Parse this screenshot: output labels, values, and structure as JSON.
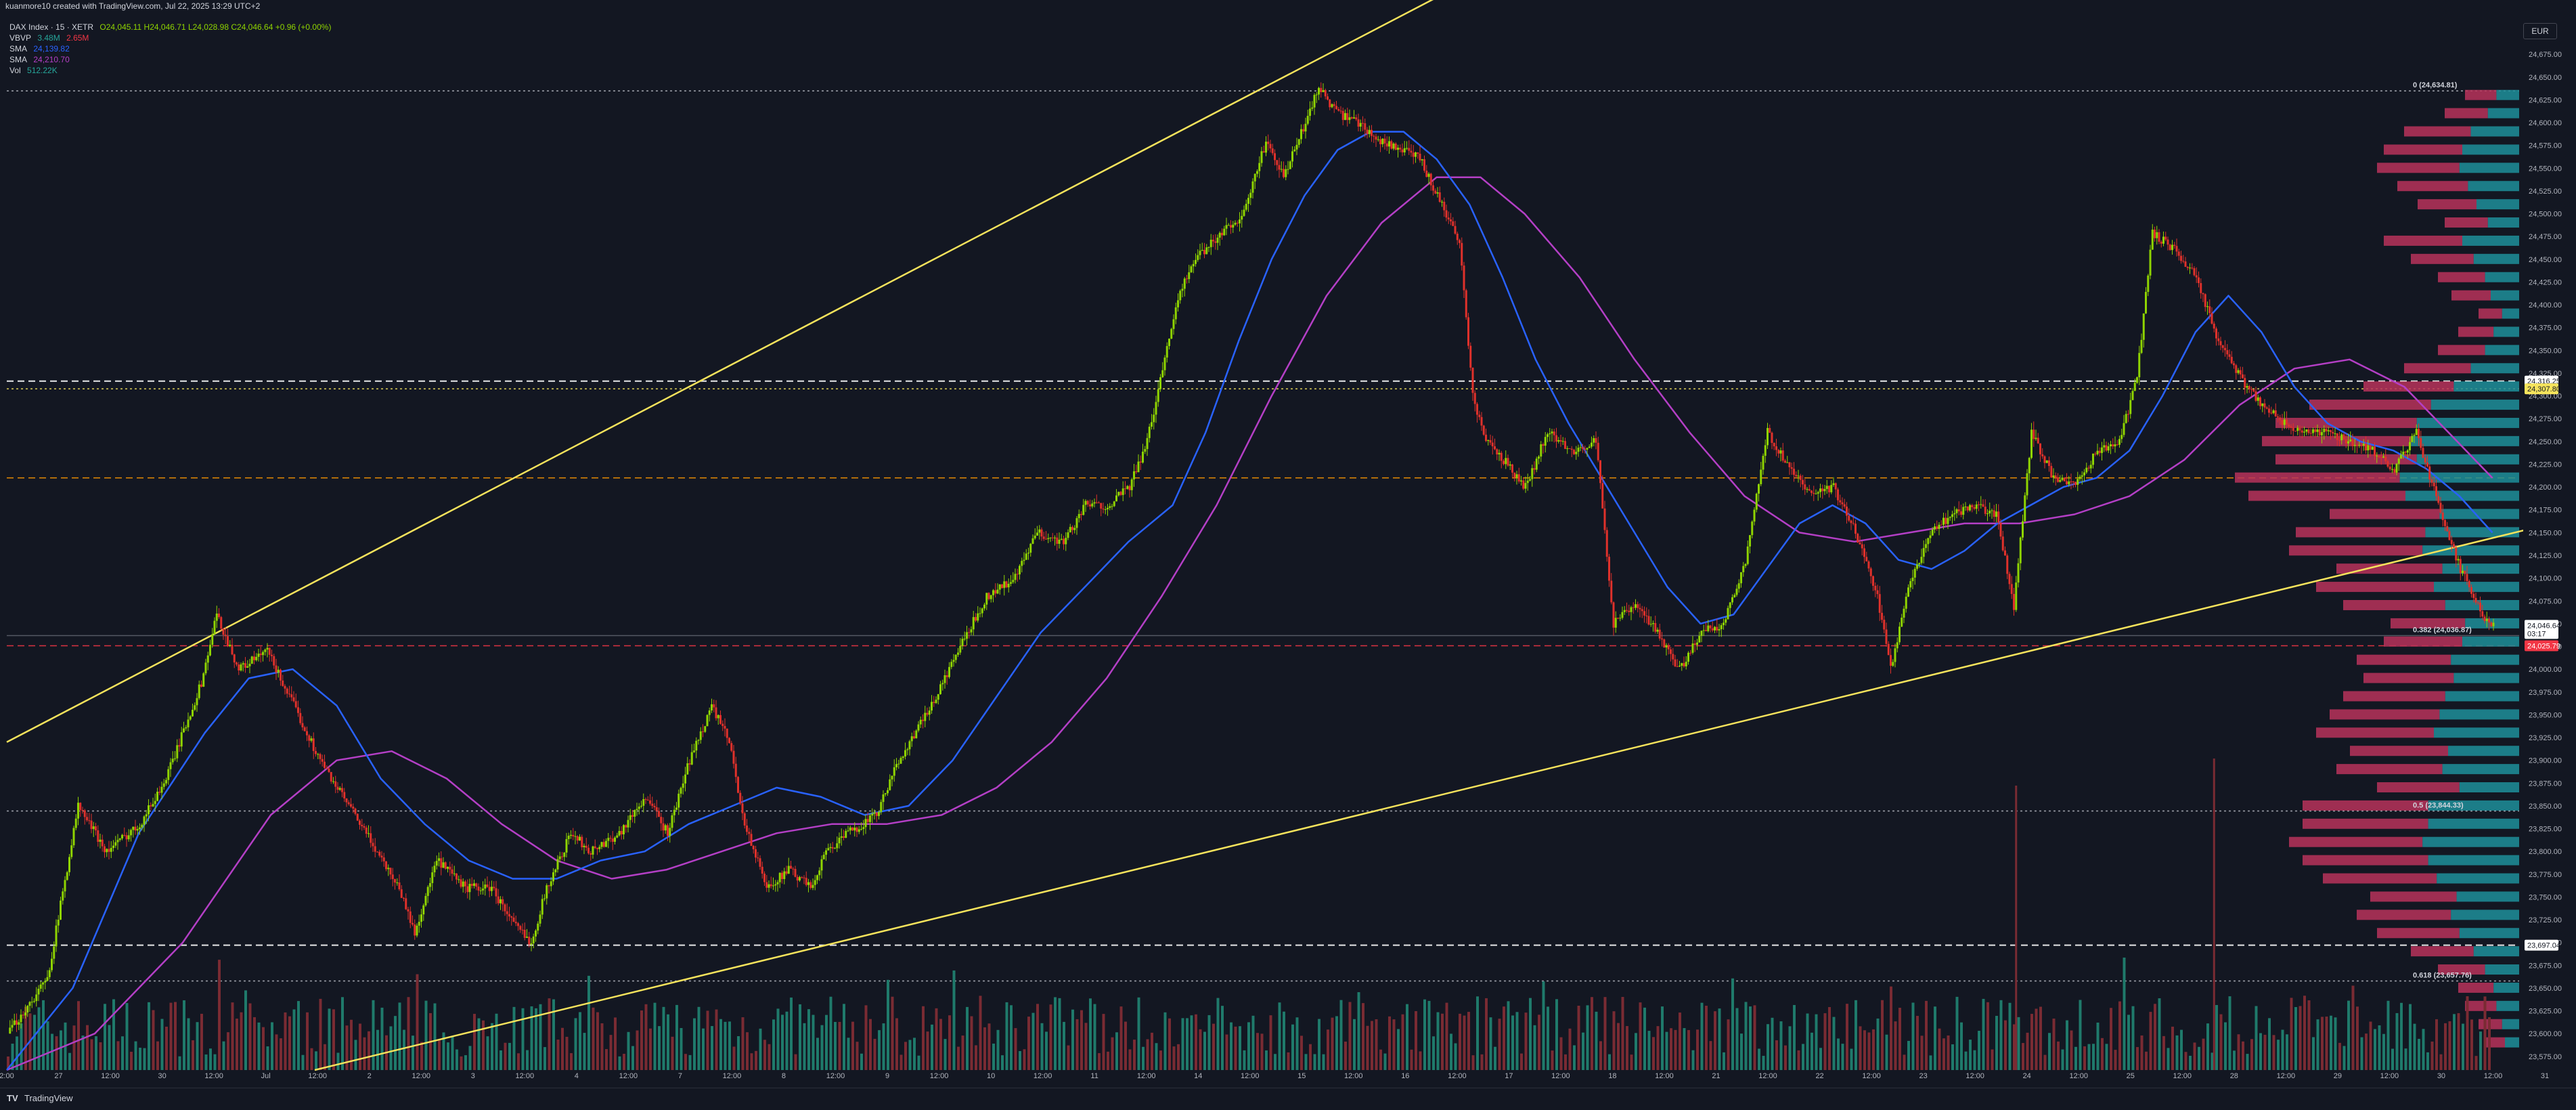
{
  "header": {
    "caption": "kuanmore10 created with TradingView.com, Jul 22, 2025 13:29 UTC+2"
  },
  "legend": {
    "symbol_line": "DAX Index · 15 · XETR",
    "ohlc": "O24,045.11 H24,046.71 L24,028.98 C24,046.64 +0.96 (+0.00%)",
    "rows": [
      {
        "key": "VBVP",
        "values": [
          "3.48M",
          "2.65M"
        ]
      },
      {
        "key": "SMA",
        "values": [
          "24,139.82"
        ]
      },
      {
        "key": "SMA",
        "values": [
          "24,210.70"
        ]
      },
      {
        "key": "Vol",
        "values": [
          "512.22K"
        ]
      }
    ]
  },
  "currency": "EUR",
  "footer": {
    "brand": "TradingView"
  },
  "colors": {
    "background": "#131722",
    "up": "#8fd400",
    "down": "#e0312b",
    "sma_fast": "#2962ff",
    "sma_slow": "#b43fc6",
    "trendline": "#f5e35c",
    "vol_up": "#1f7a6b",
    "vol_down": "#7a2b33",
    "vp_up": "#1f8f9a",
    "vp_down": "#b8325a",
    "level_orange": "#ff9800",
    "level_red": "#f23645"
  },
  "chart_data": {
    "type": "candlestick",
    "symbol": "DAX Index",
    "timeframe": "15",
    "exchange": "XETR",
    "ylim": [
      23560,
      24690
    ],
    "y_ticks": [
      "24,675.00",
      "24,650.00",
      "24,625.00",
      "24,600.00",
      "24,575.00",
      "24,550.00",
      "24,525.00",
      "24,500.00",
      "24,475.00",
      "24,450.00",
      "24,425.00",
      "24,400.00",
      "24,375.00",
      "24,350.00",
      "24,325.00",
      "24,300.00",
      "24,275.00",
      "24,250.00",
      "24,225.00",
      "24,200.00",
      "24,175.00",
      "24,150.00",
      "24,125.00",
      "24,100.00",
      "24,075.00",
      "24,050.00",
      "24,025.00",
      "24,000.00",
      "23,975.00",
      "23,950.00",
      "23,925.00",
      "23,900.00",
      "23,875.00",
      "23,850.00",
      "23,825.00",
      "23,800.00",
      "23,775.00",
      "23,750.00",
      "23,725.00",
      "23,700.00",
      "23,675.00",
      "23,650.00",
      "23,625.00",
      "23,600.00",
      "23,575.00"
    ],
    "x_ticks": [
      "2:00",
      "27",
      "12:00",
      "30",
      "12:00",
      "Jul",
      "12:00",
      "2",
      "12:00",
      "3",
      "12:00",
      "4",
      "12:00",
      "7",
      "12:00",
      "8",
      "12:00",
      "9",
      "12:00",
      "10",
      "12:00",
      "11",
      "12:00",
      "14",
      "12:00",
      "15",
      "12:00",
      "16",
      "12:00",
      "17",
      "12:00",
      "18",
      "12:00",
      "21",
      "12:00",
      "22",
      "12:00",
      "23",
      "12:00",
      "24",
      "12:00",
      "25",
      "12:00",
      "28",
      "12:00",
      "29",
      "12:00",
      "30",
      "12:00",
      "31"
    ],
    "close_path": [
      [
        0,
        23600
      ],
      [
        18,
        23660
      ],
      [
        32,
        23850
      ],
      [
        45,
        23800
      ],
      [
        60,
        23830
      ],
      [
        72,
        23880
      ],
      [
        88,
        23985
      ],
      [
        95,
        24060
      ],
      [
        105,
        24000
      ],
      [
        118,
        24020
      ],
      [
        130,
        23960
      ],
      [
        142,
        23900
      ],
      [
        155,
        23850
      ],
      [
        168,
        23800
      ],
      [
        178,
        23760
      ],
      [
        185,
        23710
      ],
      [
        195,
        23790
      ],
      [
        208,
        23760
      ],
      [
        220,
        23760
      ],
      [
        230,
        23720
      ],
      [
        238,
        23700
      ],
      [
        245,
        23760
      ],
      [
        256,
        23820
      ],
      [
        265,
        23800
      ],
      [
        278,
        23820
      ],
      [
        290,
        23860
      ],
      [
        300,
        23820
      ],
      [
        310,
        23900
      ],
      [
        320,
        23960
      ],
      [
        328,
        23920
      ],
      [
        335,
        23830
      ],
      [
        345,
        23760
      ],
      [
        355,
        23780
      ],
      [
        365,
        23760
      ],
      [
        372,
        23800
      ],
      [
        382,
        23820
      ],
      [
        395,
        23840
      ],
      [
        405,
        23900
      ],
      [
        420,
        23960
      ],
      [
        432,
        24020
      ],
      [
        445,
        24080
      ],
      [
        458,
        24100
      ],
      [
        468,
        24150
      ],
      [
        480,
        24140
      ],
      [
        490,
        24180
      ],
      [
        500,
        24180
      ],
      [
        510,
        24200
      ],
      [
        518,
        24250
      ],
      [
        525,
        24330
      ],
      [
        532,
        24410
      ],
      [
        540,
        24450
      ],
      [
        552,
        24480
      ],
      [
        562,
        24500
      ],
      [
        572,
        24580
      ],
      [
        580,
        24540
      ],
      [
        590,
        24600
      ],
      [
        596,
        24640
      ],
      [
        604,
        24610
      ],
      [
        614,
        24600
      ],
      [
        624,
        24580
      ],
      [
        634,
        24570
      ],
      [
        642,
        24560
      ],
      [
        650,
        24520
      ],
      [
        660,
        24470
      ],
      [
        666,
        24300
      ],
      [
        672,
        24250
      ],
      [
        680,
        24230
      ],
      [
        690,
        24200
      ],
      [
        700,
        24260
      ],
      [
        712,
        24240
      ],
      [
        722,
        24250
      ],
      [
        730,
        24050
      ],
      [
        740,
        24070
      ],
      [
        750,
        24040
      ],
      [
        760,
        24000
      ],
      [
        770,
        24040
      ],
      [
        780,
        24050
      ],
      [
        790,
        24120
      ],
      [
        800,
        24260
      ],
      [
        810,
        24220
      ],
      [
        820,
        24190
      ],
      [
        830,
        24200
      ],
      [
        840,
        24150
      ],
      [
        850,
        24080
      ],
      [
        856,
        24000
      ],
      [
        864,
        24090
      ],
      [
        874,
        24150
      ],
      [
        884,
        24170
      ],
      [
        894,
        24180
      ],
      [
        904,
        24170
      ],
      [
        912,
        24070
      ],
      [
        920,
        24260
      ],
      [
        930,
        24210
      ],
      [
        940,
        24200
      ],
      [
        950,
        24240
      ],
      [
        960,
        24250
      ],
      [
        968,
        24320
      ],
      [
        975,
        24480
      ],
      [
        985,
        24460
      ],
      [
        995,
        24430
      ],
      [
        1005,
        24360
      ],
      [
        1015,
        24320
      ],
      [
        1025,
        24290
      ],
      [
        1035,
        24270
      ],
      [
        1045,
        24260
      ],
      [
        1055,
        24260
      ],
      [
        1065,
        24250
      ],
      [
        1075,
        24240
      ],
      [
        1085,
        24220
      ],
      [
        1095,
        24260
      ],
      [
        1105,
        24180
      ],
      [
        1115,
        24110
      ],
      [
        1125,
        24060
      ],
      [
        1130,
        24047
      ]
    ],
    "sma_fast": [
      [
        0,
        23560
      ],
      [
        30,
        23650
      ],
      [
        60,
        23820
      ],
      [
        90,
        23930
      ],
      [
        110,
        23990
      ],
      [
        130,
        24000
      ],
      [
        150,
        23960
      ],
      [
        170,
        23880
      ],
      [
        190,
        23830
      ],
      [
        210,
        23790
      ],
      [
        230,
        23770
      ],
      [
        250,
        23770
      ],
      [
        270,
        23790
      ],
      [
        290,
        23800
      ],
      [
        310,
        23830
      ],
      [
        330,
        23850
      ],
      [
        350,
        23870
      ],
      [
        370,
        23860
      ],
      [
        390,
        23840
      ],
      [
        410,
        23850
      ],
      [
        430,
        23900
      ],
      [
        450,
        23970
      ],
      [
        470,
        24040
      ],
      [
        490,
        24090
      ],
      [
        510,
        24140
      ],
      [
        530,
        24180
      ],
      [
        545,
        24260
      ],
      [
        560,
        24360
      ],
      [
        575,
        24450
      ],
      [
        590,
        24520
      ],
      [
        605,
        24570
      ],
      [
        620,
        24590
      ],
      [
        635,
        24590
      ],
      [
        650,
        24560
      ],
      [
        665,
        24510
      ],
      [
        680,
        24430
      ],
      [
        695,
        24340
      ],
      [
        710,
        24270
      ],
      [
        725,
        24210
      ],
      [
        740,
        24150
      ],
      [
        755,
        24090
      ],
      [
        770,
        24050
      ],
      [
        785,
        24060
      ],
      [
        800,
        24110
      ],
      [
        815,
        24160
      ],
      [
        830,
        24180
      ],
      [
        845,
        24160
      ],
      [
        860,
        24120
      ],
      [
        875,
        24110
      ],
      [
        890,
        24130
      ],
      [
        905,
        24160
      ],
      [
        920,
        24180
      ],
      [
        935,
        24200
      ],
      [
        950,
        24210
      ],
      [
        965,
        24240
      ],
      [
        980,
        24300
      ],
      [
        995,
        24370
      ],
      [
        1010,
        24410
      ],
      [
        1025,
        24370
      ],
      [
        1040,
        24310
      ],
      [
        1055,
        24270
      ],
      [
        1070,
        24250
      ],
      [
        1085,
        24240
      ],
      [
        1100,
        24220
      ],
      [
        1115,
        24190
      ],
      [
        1130,
        24150
      ]
    ],
    "sma_slow": [
      [
        0,
        23560
      ],
      [
        40,
        23600
      ],
      [
        80,
        23700
      ],
      [
        120,
        23840
      ],
      [
        150,
        23900
      ],
      [
        175,
        23910
      ],
      [
        200,
        23880
      ],
      [
        225,
        23830
      ],
      [
        250,
        23790
      ],
      [
        275,
        23770
      ],
      [
        300,
        23780
      ],
      [
        325,
        23800
      ],
      [
        350,
        23820
      ],
      [
        375,
        23830
      ],
      [
        400,
        23830
      ],
      [
        425,
        23840
      ],
      [
        450,
        23870
      ],
      [
        475,
        23920
      ],
      [
        500,
        23990
      ],
      [
        525,
        24080
      ],
      [
        550,
        24180
      ],
      [
        575,
        24300
      ],
      [
        600,
        24410
      ],
      [
        625,
        24490
      ],
      [
        650,
        24540
      ],
      [
        670,
        24540
      ],
      [
        690,
        24500
      ],
      [
        715,
        24430
      ],
      [
        740,
        24340
      ],
      [
        765,
        24260
      ],
      [
        790,
        24190
      ],
      [
        815,
        24150
      ],
      [
        840,
        24140
      ],
      [
        865,
        24150
      ],
      [
        890,
        24160
      ],
      [
        915,
        24160
      ],
      [
        940,
        24170
      ],
      [
        965,
        24190
      ],
      [
        990,
        24230
      ],
      [
        1015,
        24290
      ],
      [
        1040,
        24330
      ],
      [
        1065,
        24340
      ],
      [
        1090,
        24310
      ],
      [
        1110,
        24260
      ],
      [
        1130,
        24210
      ]
    ],
    "volume_profile": [
      [
        24630,
        80
      ],
      [
        24610,
        110
      ],
      [
        24590,
        170
      ],
      [
        24570,
        200
      ],
      [
        24550,
        210
      ],
      [
        24530,
        180
      ],
      [
        24510,
        150
      ],
      [
        24490,
        110
      ],
      [
        24470,
        200
      ],
      [
        24450,
        160
      ],
      [
        24430,
        120
      ],
      [
        24410,
        100
      ],
      [
        24390,
        60
      ],
      [
        24370,
        90
      ],
      [
        24350,
        120
      ],
      [
        24330,
        170
      ],
      [
        24310,
        230
      ],
      [
        24290,
        310
      ],
      [
        24270,
        360
      ],
      [
        24250,
        380
      ],
      [
        24230,
        360
      ],
      [
        24210,
        420
      ],
      [
        24190,
        400
      ],
      [
        24170,
        280
      ],
      [
        24150,
        330
      ],
      [
        24130,
        340
      ],
      [
        24110,
        270
      ],
      [
        24090,
        300
      ],
      [
        24070,
        260
      ],
      [
        24050,
        190
      ],
      [
        24030,
        200
      ],
      [
        24010,
        240
      ],
      [
        23990,
        230
      ],
      [
        23970,
        260
      ],
      [
        23950,
        280
      ],
      [
        23930,
        300
      ],
      [
        23910,
        250
      ],
      [
        23890,
        270
      ],
      [
        23870,
        210
      ],
      [
        23850,
        320
      ],
      [
        23830,
        320
      ],
      [
        23810,
        340
      ],
      [
        23790,
        320
      ],
      [
        23770,
        290
      ],
      [
        23750,
        220
      ],
      [
        23730,
        240
      ],
      [
        23710,
        210
      ],
      [
        23690,
        160
      ],
      [
        23670,
        120
      ],
      [
        23650,
        90
      ],
      [
        23630,
        80
      ],
      [
        23610,
        60
      ],
      [
        23590,
        50
      ]
    ],
    "volume_spikes": [
      [
        913,
        420
      ],
      [
        1003,
        460
      ]
    ],
    "levels": [
      {
        "price": 24634.81,
        "label": "0 (24,634.81)",
        "style": "dotted",
        "color": "#b2b5be"
      },
      {
        "price": 24316.25,
        "label": "24,316.25",
        "style": "dashed",
        "color": "#ffffff"
      },
      {
        "price": 24307.8,
        "label": "24,307.80",
        "style": "dotted",
        "color": "#f5e35c"
      },
      {
        "price": 24210.0,
        "label": "",
        "style": "dashed",
        "color": "#ff9800"
      },
      {
        "price": 24036.87,
        "label": "0.382 (24,036.87)",
        "style": "solid",
        "color": "#5d606b"
      },
      {
        "price": 24025.79,
        "label": "24,025.79",
        "style": "dashed",
        "color": "#f23645"
      },
      {
        "price": 23844.33,
        "label": "0.5 (23,844.33)",
        "style": "dotted",
        "color": "#b2b5be"
      },
      {
        "price": 23697.04,
        "label": "23,697.04",
        "style": "dashed",
        "color": "#ffffff"
      },
      {
        "price": 23657.76,
        "label": "0.618 (23,657.76)",
        "style": "dotted",
        "color": "#b2b5be"
      }
    ],
    "price_label": {
      "price": "24,046.64",
      "countdown": "03:17"
    },
    "trendlines": [
      {
        "from": [
          0,
          23920
        ],
        "to": [
          668,
          24760
        ]
      },
      {
        "from": [
          140,
          23560
        ],
        "to": [
          1530,
          24380
        ]
      }
    ]
  }
}
